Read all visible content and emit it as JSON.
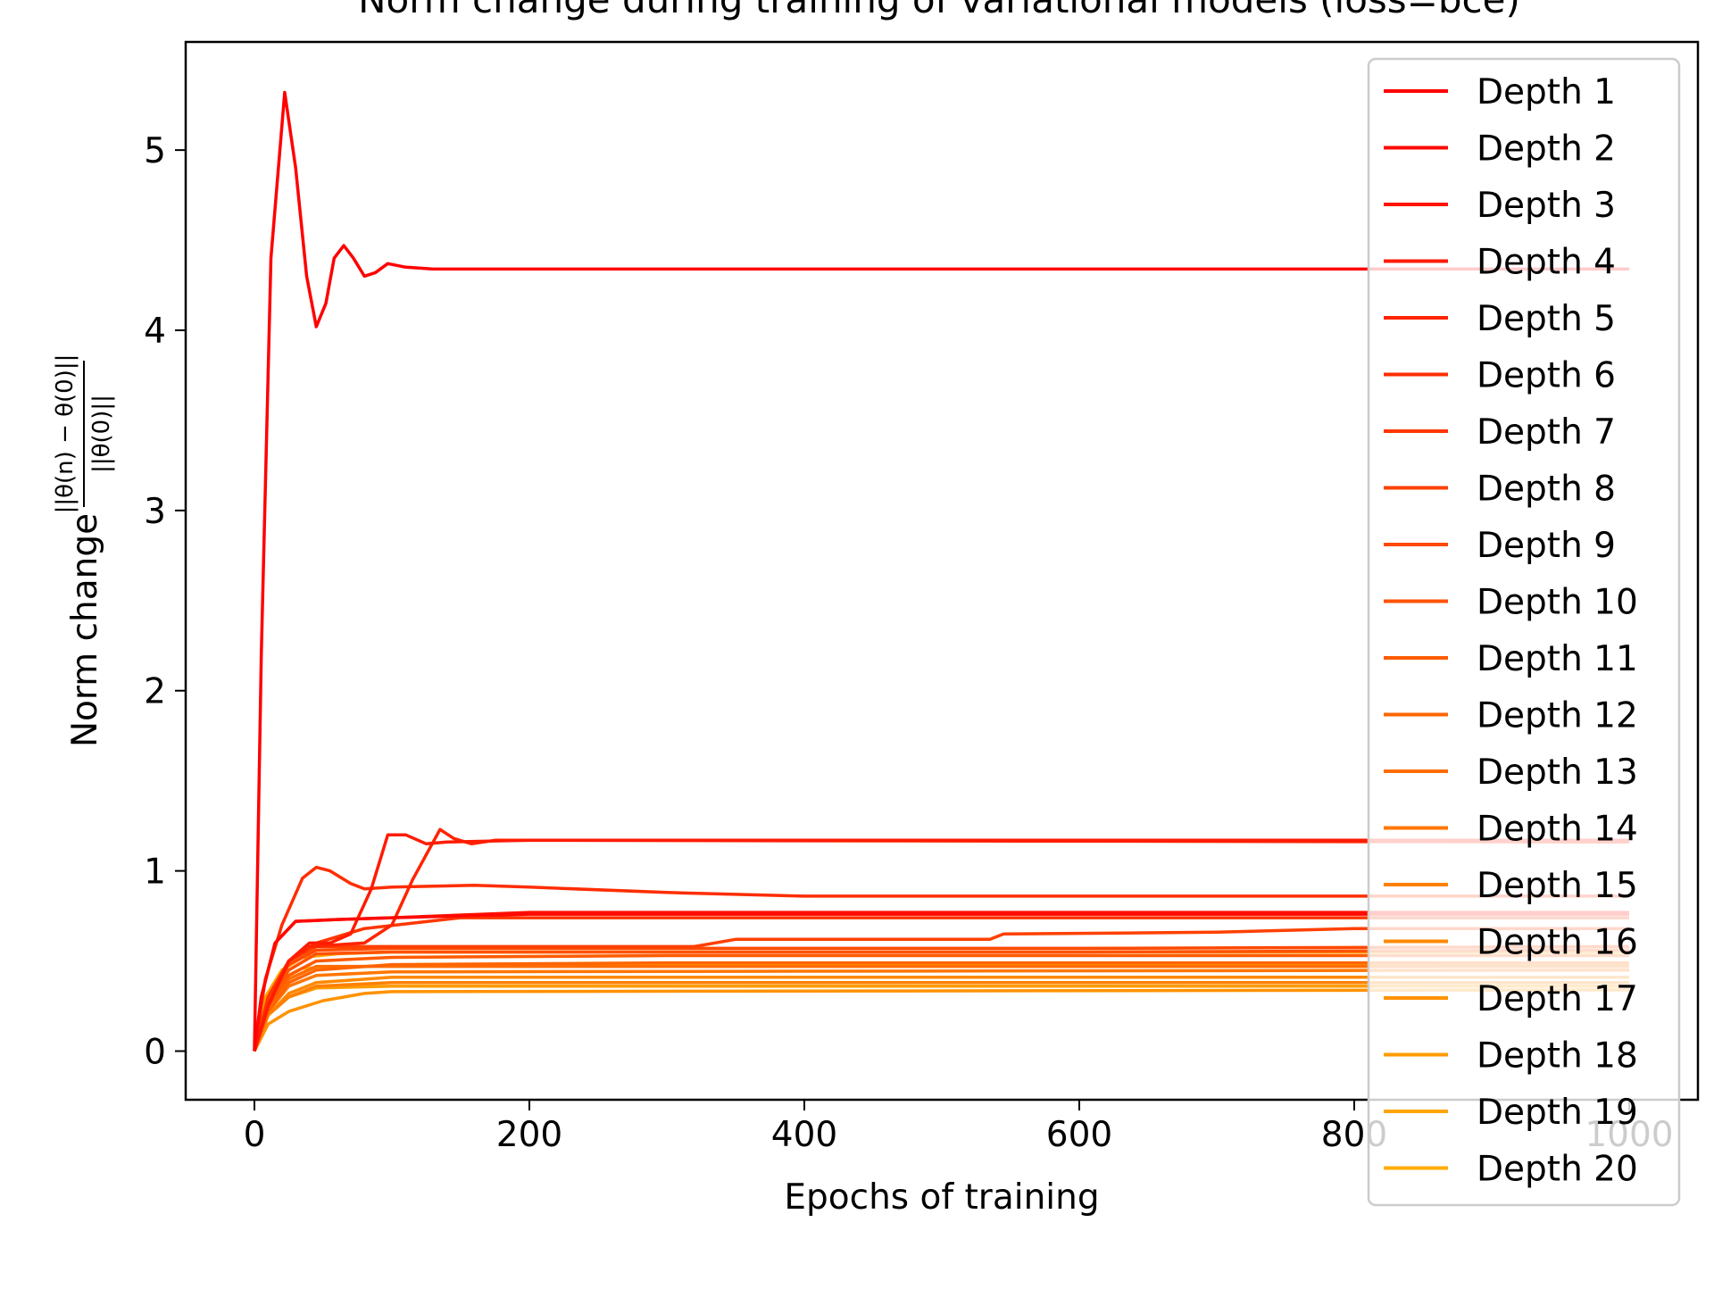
{
  "chart_data": {
    "type": "line",
    "title": "Norm change during training of variational models (loss=bce)",
    "xlabel": "Epochs of training",
    "ylabel": "Norm change",
    "ylabel_fraction": {
      "numerator": "||θ(n) − θ(0)||",
      "denominator": "||θ(0)||"
    },
    "xlim": [
      -50,
      1050
    ],
    "ylim": [
      -0.27,
      5.6
    ],
    "xticks": [
      0,
      200,
      400,
      600,
      800,
      1000
    ],
    "yticks": [
      0,
      1,
      2,
      3,
      4,
      5
    ],
    "grid": false,
    "legend_position": "right",
    "series": [
      {
        "name": "Depth 1",
        "color": "#ff0000",
        "points": [
          [
            0,
            0
          ],
          [
            5,
            2.2
          ],
          [
            12,
            4.4
          ],
          [
            22,
            5.32
          ],
          [
            30,
            4.9
          ],
          [
            38,
            4.3
          ],
          [
            45,
            4.02
          ],
          [
            52,
            4.15
          ],
          [
            58,
            4.4
          ],
          [
            65,
            4.47
          ],
          [
            72,
            4.4
          ],
          [
            80,
            4.3
          ],
          [
            88,
            4.32
          ],
          [
            97,
            4.37
          ],
          [
            110,
            4.35
          ],
          [
            130,
            4.34
          ],
          [
            200,
            4.34
          ],
          [
            1000,
            4.34
          ]
        ]
      },
      {
        "name": "Depth 2",
        "color": "#ff0900",
        "points": [
          [
            0,
            0
          ],
          [
            5,
            0.3
          ],
          [
            15,
            0.6
          ],
          [
            30,
            0.72
          ],
          [
            60,
            0.73
          ],
          [
            100,
            0.74
          ],
          [
            200,
            0.76
          ],
          [
            400,
            0.76
          ],
          [
            1000,
            0.76
          ]
        ]
      },
      {
        "name": "Depth 3",
        "color": "#ff1200",
        "points": [
          [
            0,
            0
          ],
          [
            5,
            0.3
          ],
          [
            15,
            0.6
          ],
          [
            30,
            0.72
          ],
          [
            60,
            0.73
          ],
          [
            100,
            0.74
          ],
          [
            200,
            0.77
          ],
          [
            400,
            0.77
          ],
          [
            1000,
            0.77
          ]
        ]
      },
      {
        "name": "Depth 4",
        "color": "#ff1b00",
        "points": [
          [
            0,
            0
          ],
          [
            10,
            0.25
          ],
          [
            25,
            0.5
          ],
          [
            40,
            0.6
          ],
          [
            55,
            0.6
          ],
          [
            70,
            0.65
          ],
          [
            85,
            0.9
          ],
          [
            97,
            1.2
          ],
          [
            110,
            1.2
          ],
          [
            125,
            1.15
          ],
          [
            140,
            1.16
          ],
          [
            200,
            1.17
          ],
          [
            1000,
            1.17
          ]
        ]
      },
      {
        "name": "Depth 5",
        "color": "#ff2400",
        "points": [
          [
            0,
            0
          ],
          [
            10,
            0.25
          ],
          [
            25,
            0.5
          ],
          [
            40,
            0.58
          ],
          [
            80,
            0.6
          ],
          [
            100,
            0.7
          ],
          [
            115,
            0.95
          ],
          [
            135,
            1.23
          ],
          [
            145,
            1.18
          ],
          [
            158,
            1.15
          ],
          [
            175,
            1.17
          ],
          [
            1000,
            1.16
          ]
        ]
      },
      {
        "name": "Depth 6",
        "color": "#ff2d00",
        "points": [
          [
            0,
            0
          ],
          [
            8,
            0.4
          ],
          [
            20,
            0.7
          ],
          [
            35,
            0.96
          ],
          [
            45,
            1.02
          ],
          [
            55,
            1.0
          ],
          [
            70,
            0.93
          ],
          [
            80,
            0.9
          ],
          [
            100,
            0.91
          ],
          [
            160,
            0.92
          ],
          [
            200,
            0.91
          ],
          [
            300,
            0.88
          ],
          [
            400,
            0.86
          ],
          [
            1000,
            0.86
          ]
        ]
      },
      {
        "name": "Depth 7",
        "color": "#ff3600",
        "points": [
          [
            0,
            0
          ],
          [
            10,
            0.3
          ],
          [
            25,
            0.5
          ],
          [
            45,
            0.6
          ],
          [
            80,
            0.68
          ],
          [
            150,
            0.74
          ],
          [
            300,
            0.74
          ],
          [
            1000,
            0.74
          ]
        ]
      },
      {
        "name": "Depth 8",
        "color": "#ff4000",
        "points": [
          [
            0,
            0
          ],
          [
            10,
            0.3
          ],
          [
            25,
            0.5
          ],
          [
            45,
            0.58
          ],
          [
            100,
            0.58
          ],
          [
            320,
            0.58
          ],
          [
            350,
            0.62
          ],
          [
            535,
            0.62
          ],
          [
            545,
            0.65
          ],
          [
            700,
            0.66
          ],
          [
            800,
            0.68
          ],
          [
            1000,
            0.68
          ]
        ]
      },
      {
        "name": "Depth 9",
        "color": "#ff4900",
        "points": [
          [
            0,
            0
          ],
          [
            10,
            0.3
          ],
          [
            25,
            0.48
          ],
          [
            45,
            0.56
          ],
          [
            100,
            0.57
          ],
          [
            300,
            0.57
          ],
          [
            600,
            0.57
          ],
          [
            1000,
            0.58
          ]
        ]
      },
      {
        "name": "Depth 10",
        "color": "#ff5200",
        "points": [
          [
            0,
            0
          ],
          [
            10,
            0.28
          ],
          [
            25,
            0.45
          ],
          [
            45,
            0.54
          ],
          [
            100,
            0.55
          ],
          [
            300,
            0.55
          ],
          [
            600,
            0.55
          ],
          [
            1000,
            0.56
          ]
        ]
      },
      {
        "name": "Depth 11",
        "color": "#ff5b00",
        "points": [
          [
            0,
            0
          ],
          [
            10,
            0.25
          ],
          [
            25,
            0.42
          ],
          [
            45,
            0.5
          ],
          [
            100,
            0.52
          ],
          [
            300,
            0.53
          ],
          [
            1000,
            0.53
          ]
        ]
      },
      {
        "name": "Depth 12",
        "color": "#ff6400",
        "points": [
          [
            0,
            0
          ],
          [
            10,
            0.22
          ],
          [
            25,
            0.38
          ],
          [
            45,
            0.45
          ],
          [
            100,
            0.48
          ],
          [
            300,
            0.49
          ],
          [
            1000,
            0.49
          ]
        ]
      },
      {
        "name": "Depth 13",
        "color": "#ff6d00",
        "points": [
          [
            0,
            0
          ],
          [
            10,
            0.25
          ],
          [
            25,
            0.4
          ],
          [
            45,
            0.47
          ],
          [
            100,
            0.47
          ],
          [
            1000,
            0.47
          ]
        ]
      },
      {
        "name": "Depth 14",
        "color": "#ff7600",
        "points": [
          [
            0,
            0
          ],
          [
            10,
            0.22
          ],
          [
            25,
            0.36
          ],
          [
            45,
            0.42
          ],
          [
            100,
            0.44
          ],
          [
            1000,
            0.45
          ]
        ]
      },
      {
        "name": "Depth 15",
        "color": "#ff8000",
        "points": [
          [
            0,
            0
          ],
          [
            10,
            0.2
          ],
          [
            25,
            0.3
          ],
          [
            45,
            0.36
          ],
          [
            100,
            0.38
          ],
          [
            1000,
            0.38
          ]
        ]
      },
      {
        "name": "Depth 16",
        "color": "#ff8900",
        "points": [
          [
            0,
            0
          ],
          [
            10,
            0.2
          ],
          [
            25,
            0.32
          ],
          [
            45,
            0.38
          ],
          [
            100,
            0.41
          ],
          [
            1000,
            0.41
          ]
        ]
      },
      {
        "name": "Depth 17",
        "color": "#ff9200",
        "points": [
          [
            0,
            0
          ],
          [
            10,
            0.15
          ],
          [
            25,
            0.22
          ],
          [
            50,
            0.28
          ],
          [
            80,
            0.32
          ],
          [
            100,
            0.33
          ],
          [
            1000,
            0.34
          ]
        ]
      },
      {
        "name": "Depth 18",
        "color": "#ff9b00",
        "points": [
          [
            0,
            0
          ],
          [
            10,
            0.2
          ],
          [
            25,
            0.3
          ],
          [
            45,
            0.35
          ],
          [
            100,
            0.36
          ],
          [
            1000,
            0.36
          ]
        ]
      },
      {
        "name": "Depth 19",
        "color": "#ffa400",
        "points": [
          [
            0,
            0
          ],
          [
            8,
            0.3
          ],
          [
            20,
            0.45
          ],
          [
            35,
            0.52
          ],
          [
            60,
            0.54
          ],
          [
            100,
            0.55
          ],
          [
            1000,
            0.55
          ]
        ]
      },
      {
        "name": "Depth 20",
        "color": "#ffad00",
        "points": [
          [
            0,
            0
          ],
          [
            8,
            0.25
          ],
          [
            20,
            0.4
          ],
          [
            35,
            0.46
          ],
          [
            80,
            0.47
          ],
          [
            150,
            0.48
          ],
          [
            1000,
            0.48
          ]
        ]
      }
    ]
  }
}
